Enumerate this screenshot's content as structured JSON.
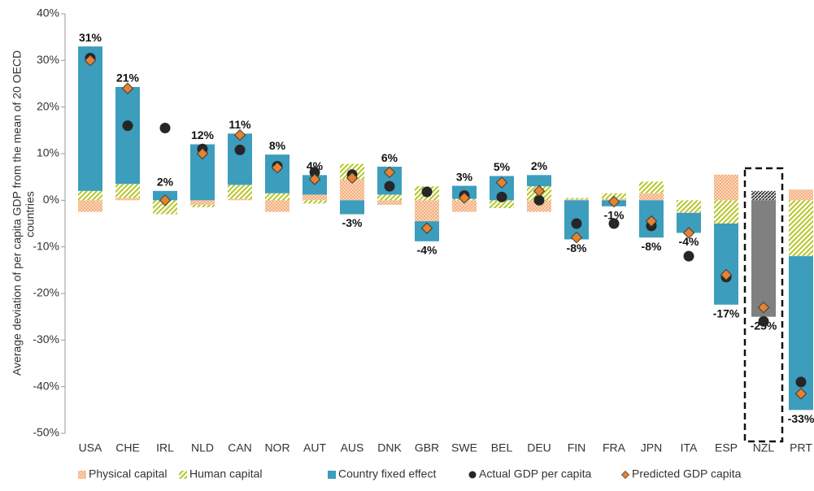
{
  "chart_data": {
    "type": "bar",
    "stacked": true,
    "ylabel": [
      "Average deviation of per capita GDP from the mean of 20 OECD",
      "countries"
    ],
    "categories": [
      "USA",
      "CHE",
      "IRL",
      "NLD",
      "CAN",
      "NOR",
      "AUT",
      "AUS",
      "DNK",
      "GBR",
      "SWE",
      "BEL",
      "DEU",
      "FIN",
      "FRA",
      "JPN",
      "ITA",
      "ESP",
      "NZL",
      "PRT"
    ],
    "series": [
      {
        "name": "Physical capital",
        "color": "#f4a46a",
        "type": "bar",
        "pattern": "crosshatch",
        "values": [
          -2.5,
          0.5,
          0,
          -1,
          0.3,
          -2.5,
          1.2,
          4.5,
          -1,
          -4.5,
          -2.5,
          0,
          -2.5,
          0.2,
          0.3,
          1.5,
          0,
          5.5,
          0,
          2.3
        ]
      },
      {
        "name": "Human capital",
        "color": "#b5c626",
        "type": "bar",
        "pattern": "diagonal",
        "values": [
          2,
          3,
          -3,
          -0.5,
          3,
          1.5,
          -0.7,
          3.3,
          1.2,
          3,
          0.3,
          -1.7,
          3,
          0.3,
          1.2,
          2.5,
          -2.7,
          -5,
          2,
          -12
        ]
      },
      {
        "name": "Country fixed effect",
        "color": "#3c9dbd",
        "type": "bar",
        "pattern": "solid",
        "values": [
          31,
          20.8,
          2,
          12,
          11,
          8.3,
          4.2,
          -3,
          6,
          -4.3,
          2.8,
          5.2,
          2.4,
          -8.4,
          -1.3,
          -8,
          -4.3,
          -17.4,
          -25,
          -33
        ],
        "value_labels": [
          "31%",
          "21%",
          "2%",
          "12%",
          "11%",
          "8%",
          "4%",
          "-3%",
          "6%",
          "-4%",
          "3%",
          "5%",
          "2%",
          "-8%",
          "-1%",
          "-8%",
          "-4%",
          "-17%",
          "-25%",
          "-33%"
        ]
      },
      {
        "name": "Actual GDP per capita",
        "color": "#262626",
        "type": "scatter",
        "marker": "circle",
        "values": [
          30.5,
          16,
          15.5,
          11,
          10.8,
          7.3,
          6,
          5.5,
          3,
          1.8,
          1,
          0.7,
          0,
          -5,
          -5,
          -5.5,
          -12,
          -16.5,
          -26,
          -39
        ]
      },
      {
        "name": "Predicted GDP capita",
        "color": "#e8822e",
        "type": "scatter",
        "marker": "diamond",
        "values": [
          30,
          24,
          0,
          10,
          14,
          7,
          4.5,
          4.8,
          6,
          -6,
          0.5,
          3.8,
          2,
          -8,
          -0.3,
          -4.5,
          -7,
          -16,
          -23,
          -41.5
        ]
      }
    ],
    "highlight_index": 18,
    "highlight_color": "#808080",
    "ylim": [
      -50,
      40
    ],
    "yticks": [
      {
        "value": -50,
        "label": "-50%"
      },
      {
        "value": -40,
        "label": "-40%"
      },
      {
        "value": -30,
        "label": "-30%"
      },
      {
        "value": -20,
        "label": "-20%"
      },
      {
        "value": -10,
        "label": "-10%"
      },
      {
        "value": 0,
        "label": "0%"
      },
      {
        "value": 10,
        "label": "10%"
      },
      {
        "value": 20,
        "label": "20%"
      },
      {
        "value": 30,
        "label": "30%"
      },
      {
        "value": 40,
        "label": "40%"
      }
    ],
    "grid": false,
    "legend": "bottom"
  }
}
